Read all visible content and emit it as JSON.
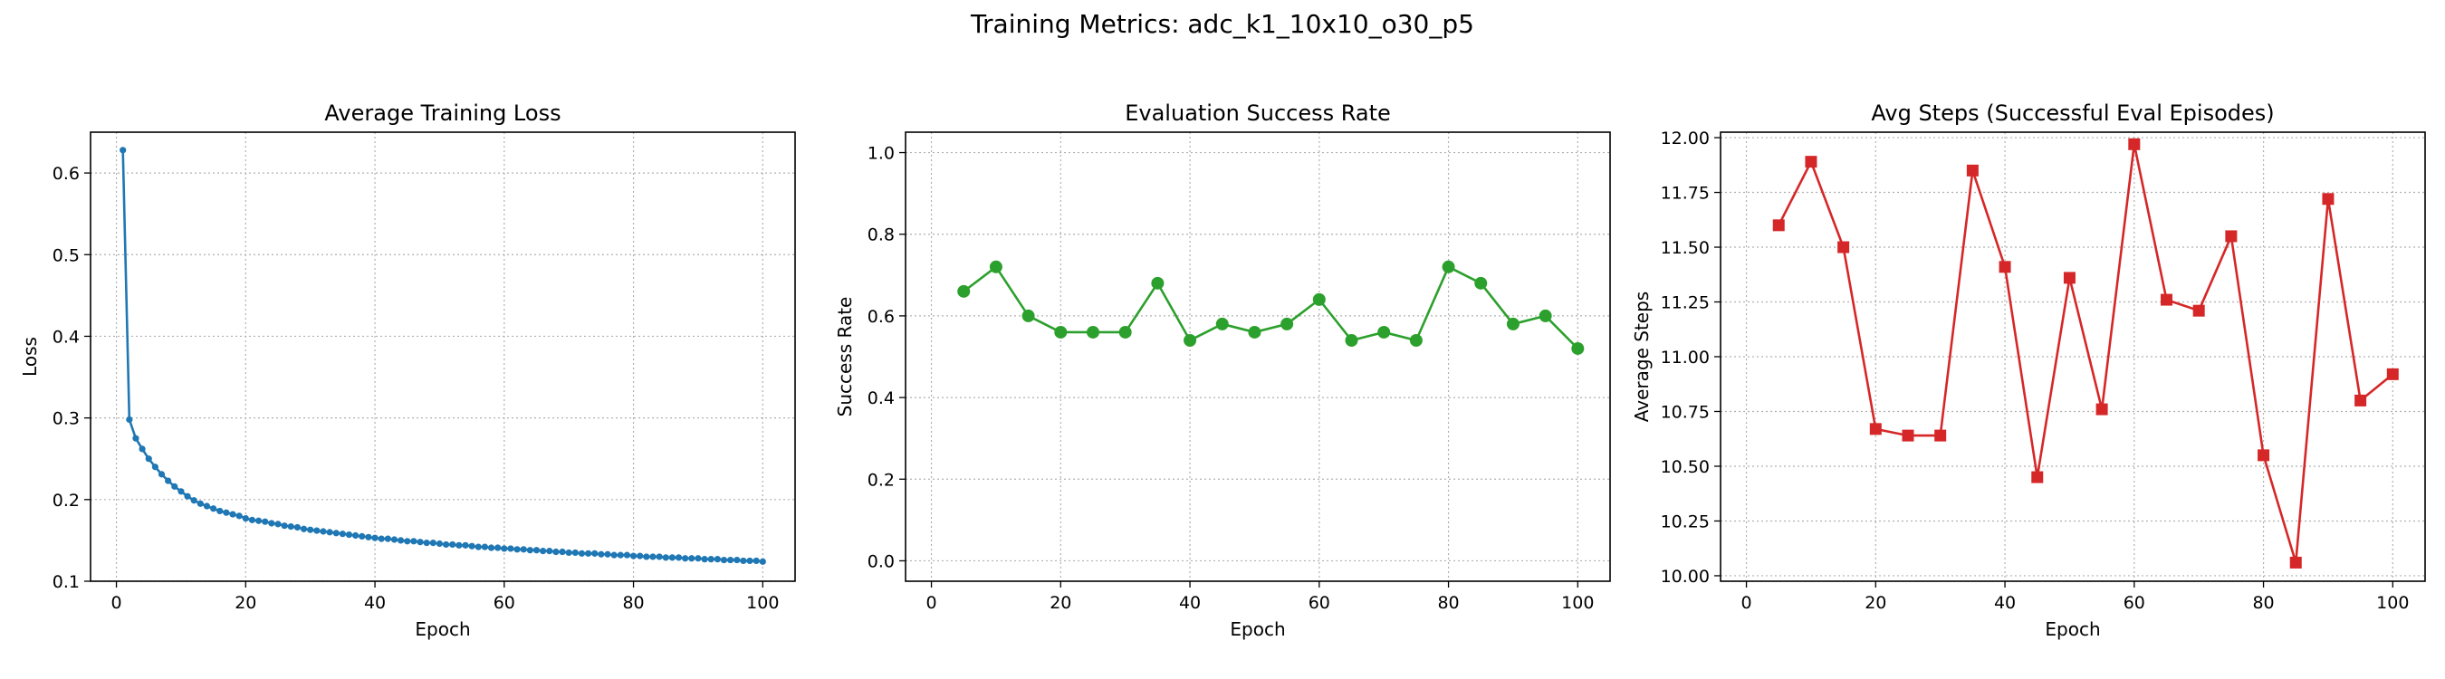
{
  "suptitle": "Training Metrics: adc_k1_10x10_o30_p5",
  "chart_data": [
    {
      "type": "line",
      "title": "Average Training Loss",
      "xlabel": "Epoch",
      "ylabel": "Loss",
      "xlim": [
        -4,
        105
      ],
      "ylim": [
        0.1,
        0.65
      ],
      "xticks": [
        0,
        20,
        40,
        60,
        80,
        100
      ],
      "yticks": [
        0.1,
        0.2,
        0.3,
        0.4,
        0.5,
        0.6
      ],
      "ytick_decimals": 1,
      "xticks_labeled": [
        20,
        40,
        60,
        80,
        100
      ],
      "grid": true,
      "color": "#1f77b4",
      "marker": "circle-small",
      "series": [
        {
          "x": [
            1,
            2,
            3,
            4,
            5,
            6,
            7,
            8,
            9,
            10,
            11,
            12,
            13,
            14,
            15,
            16,
            17,
            18,
            19,
            20,
            21,
            22,
            23,
            24,
            25,
            26,
            27,
            28,
            29,
            30,
            31,
            32,
            33,
            34,
            35,
            36,
            37,
            38,
            39,
            40,
            41,
            42,
            43,
            44,
            45,
            46,
            47,
            48,
            49,
            50,
            51,
            52,
            53,
            54,
            55,
            56,
            57,
            58,
            59,
            60,
            61,
            62,
            63,
            64,
            65,
            66,
            67,
            68,
            69,
            70,
            71,
            72,
            73,
            74,
            75,
            76,
            77,
            78,
            79,
            80,
            81,
            82,
            83,
            84,
            85,
            86,
            87,
            88,
            89,
            90,
            91,
            92,
            93,
            94,
            95,
            96,
            97,
            98,
            99,
            100
          ],
          "y": [
            0.628,
            0.298,
            0.275,
            0.262,
            0.25,
            0.24,
            0.231,
            0.223,
            0.216,
            0.21,
            0.204,
            0.199,
            0.195,
            0.192,
            0.189,
            0.186,
            0.184,
            0.182,
            0.18,
            0.177,
            0.175,
            0.174,
            0.173,
            0.171,
            0.17,
            0.168,
            0.167,
            0.166,
            0.164,
            0.163,
            0.162,
            0.161,
            0.16,
            0.159,
            0.158,
            0.157,
            0.156,
            0.155,
            0.154,
            0.153,
            0.152,
            0.152,
            0.151,
            0.15,
            0.149,
            0.149,
            0.148,
            0.147,
            0.147,
            0.146,
            0.145,
            0.145,
            0.144,
            0.144,
            0.143,
            0.142,
            0.142,
            0.141,
            0.141,
            0.14,
            0.14,
            0.139,
            0.139,
            0.138,
            0.138,
            0.137,
            0.137,
            0.136,
            0.136,
            0.135,
            0.135,
            0.134,
            0.134,
            0.134,
            0.133,
            0.133,
            0.132,
            0.132,
            0.132,
            0.131,
            0.131,
            0.13,
            0.13,
            0.13,
            0.129,
            0.129,
            0.129,
            0.128,
            0.128,
            0.128,
            0.127,
            0.127,
            0.127,
            0.126,
            0.126,
            0.126,
            0.125,
            0.125,
            0.125,
            0.124
          ]
        }
      ]
    },
    {
      "type": "line",
      "title": "Evaluation Success Rate",
      "xlabel": "Epoch",
      "ylabel": "Success Rate",
      "xlim": [
        -4,
        105
      ],
      "ylim": [
        -0.05,
        1.05
      ],
      "xticks": [
        0,
        20,
        40,
        60,
        80,
        100
      ],
      "yticks": [
        0.0,
        0.2,
        0.4,
        0.6,
        0.8,
        1.0
      ],
      "ytick_decimals": 1,
      "grid": true,
      "color": "#2ca02c",
      "marker": "circle",
      "series": [
        {
          "x": [
            5,
            10,
            15,
            20,
            25,
            30,
            35,
            40,
            45,
            50,
            55,
            60,
            65,
            70,
            75,
            80,
            85,
            90,
            95,
            100
          ],
          "y": [
            0.66,
            0.72,
            0.6,
            0.56,
            0.56,
            0.56,
            0.68,
            0.54,
            0.58,
            0.56,
            0.58,
            0.64,
            0.54,
            0.56,
            0.54,
            0.72,
            0.68,
            0.58,
            0.6,
            0.52
          ]
        }
      ]
    },
    {
      "type": "line",
      "title": "Avg Steps (Successful Eval Episodes)",
      "xlabel": "Epoch",
      "ylabel": "Average Steps",
      "xlim": [
        -4,
        105
      ],
      "ylim": [
        9.975,
        12.025
      ],
      "xticks": [
        0,
        20,
        40,
        60,
        80,
        100
      ],
      "yticks": [
        10.0,
        10.25,
        10.5,
        10.75,
        11.0,
        11.25,
        11.5,
        11.75,
        12.0
      ],
      "ytick_decimals": 2,
      "grid": true,
      "color": "#d62728",
      "marker": "square",
      "series": [
        {
          "x": [
            5,
            10,
            15,
            20,
            25,
            30,
            35,
            40,
            45,
            50,
            55,
            60,
            65,
            70,
            75,
            80,
            85,
            90,
            95,
            100
          ],
          "y": [
            11.6,
            11.89,
            11.5,
            10.67,
            10.64,
            10.64,
            11.85,
            11.41,
            10.45,
            11.36,
            10.76,
            11.97,
            11.26,
            11.21,
            11.55,
            10.55,
            10.06,
            11.72,
            10.8,
            10.92
          ]
        }
      ]
    }
  ]
}
